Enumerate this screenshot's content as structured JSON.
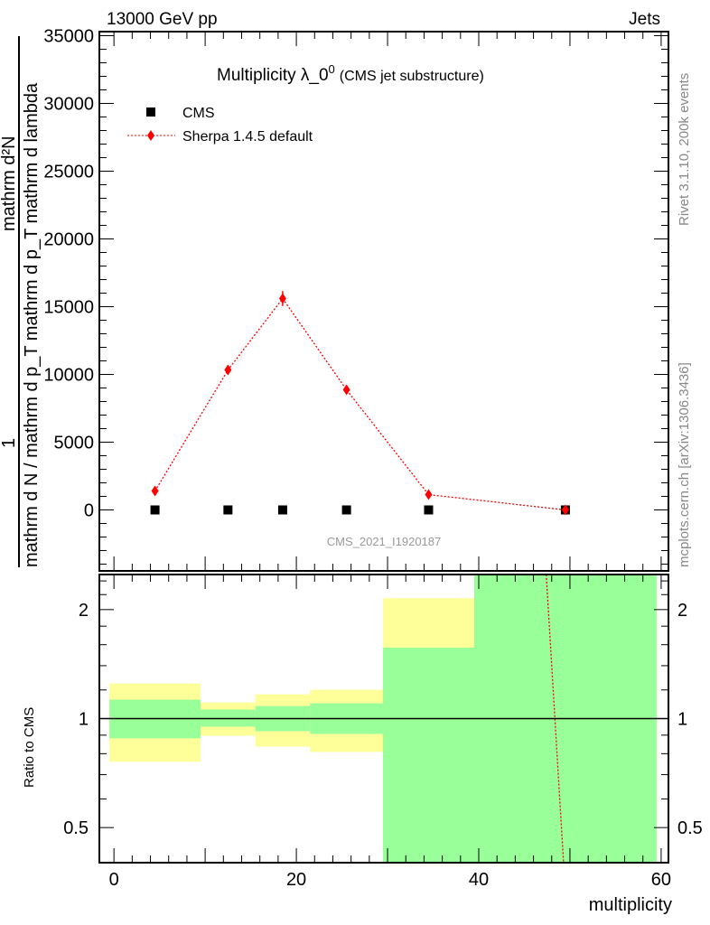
{
  "chart_data": [
    {
      "type": "scatter",
      "title": "Multiplicity λ_0",
      "title_sup": "0",
      "title_suffix": "(CMS jet substructure)",
      "header_left": "13000 GeV pp",
      "header_right": "Jets",
      "side_label_top": "Rivet 3.1.10,  200k events",
      "side_label_bottom": "mcplots.cern.ch [arXiv:1306.3436]",
      "watermark": "CMS_2021_I1920187",
      "ylabel_numerator": "mathrm d²N",
      "ylabel_one": "1",
      "ylabel_denominator": "mathrm d N / mathrm d p_T mathrm d p_T mathrm d lambda",
      "xlim": [
        -1.6,
        60.8
      ],
      "ylim": [
        -4500,
        35300
      ],
      "yticks": [
        0,
        5000,
        10000,
        15000,
        20000,
        25000,
        30000,
        35000
      ],
      "ytick_labels": [
        "0",
        "5000",
        "10000",
        "15000",
        "20000",
        "25000",
        "30000",
        "35000"
      ],
      "legend_placement": "top-left",
      "series": [
        {
          "name": "CMS",
          "color": "#000000",
          "marker": "square",
          "x": [
            4.5,
            12.5,
            18.5,
            25.5,
            34.5,
            49.5
          ],
          "y": [
            0,
            0,
            0,
            0,
            0,
            0
          ]
        },
        {
          "name": "Sherpa 1.4.5 default",
          "color": "#ff0000",
          "marker": "diamond",
          "line": "dotted",
          "x": [
            4.5,
            12.5,
            18.5,
            25.5,
            34.5,
            49.5
          ],
          "y": [
            1400,
            10330,
            15600,
            8870,
            1130,
            0
          ],
          "yerr": [
            200,
            350,
            550,
            300,
            150,
            50
          ]
        }
      ]
    },
    {
      "type": "area",
      "ylabel": "Ratio to CMS",
      "xlabel": "multiplicity",
      "yscale": "log",
      "ylim": [
        0.4,
        2.5
      ],
      "xlim": [
        -1.6,
        60.8
      ],
      "xticks": [
        0,
        20,
        40,
        60
      ],
      "xtick_labels": [
        "0",
        "20",
        "40",
        "60"
      ],
      "yticks": [
        0.5,
        1,
        2
      ],
      "ytick_labels": [
        "0.5",
        "1",
        "2"
      ],
      "bin_edges": [
        -0.5,
        9.5,
        15.5,
        21.5,
        29.5,
        39.5,
        59.5
      ],
      "band_outer": {
        "color": "#ffff99",
        "low": [
          0.76,
          0.897,
          0.837,
          0.809,
          0.433,
          0.3
        ],
        "high": [
          1.25,
          1.108,
          1.167,
          1.201,
          2.15,
          3.0
        ]
      },
      "band_inner": {
        "color": "#99ff99",
        "low": [
          0.882,
          0.95,
          0.923,
          0.907,
          0.3,
          0.3
        ],
        "high": [
          1.128,
          1.059,
          1.083,
          1.102,
          1.57,
          3.0
        ]
      },
      "sherpa_ratio_line": {
        "color": "#ff0000",
        "x": [
          47.4,
          49.3
        ],
        "y": [
          2.5,
          0.4
        ]
      }
    }
  ]
}
